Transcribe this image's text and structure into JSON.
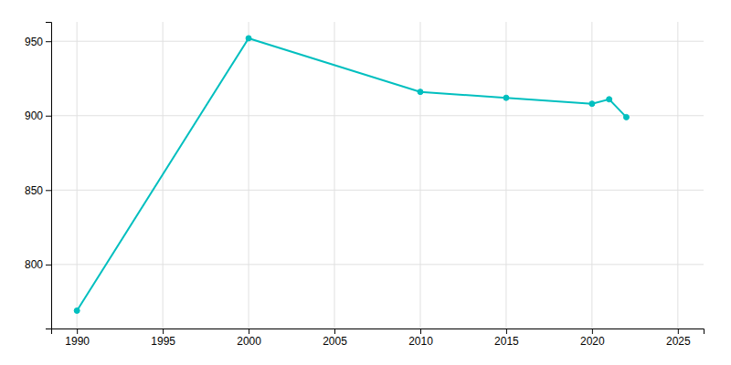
{
  "chart_data": {
    "type": "line",
    "x": [
      1990,
      2000,
      2010,
      2015,
      2020,
      2021,
      2022
    ],
    "values": [
      769,
      952,
      916,
      912,
      908,
      911,
      899
    ],
    "color": "#00BFBF",
    "marker": "circle",
    "xlim": [
      1988.5,
      2026.5
    ],
    "ylim": [
      757,
      963
    ],
    "xticks": [
      1990,
      1995,
      2000,
      2005,
      2010,
      2015,
      2020,
      2025
    ],
    "yticks": [
      800,
      850,
      900,
      950
    ],
    "grid": true
  }
}
